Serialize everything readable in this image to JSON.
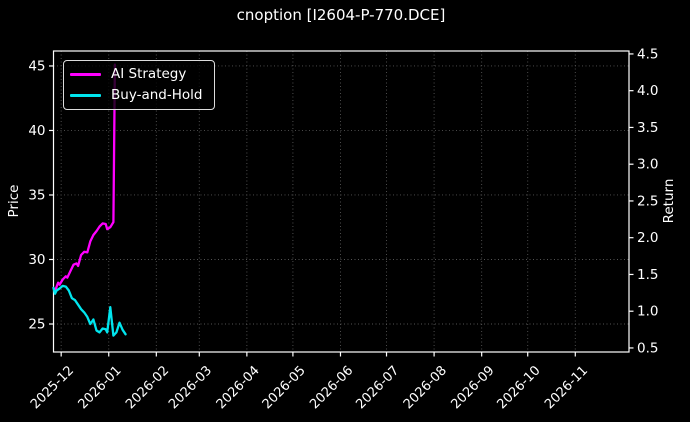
{
  "chart_data": {
    "type": "line",
    "title": "cnoption [I2604-P-770.DCE]",
    "ylabel_left": "Price",
    "ylabel_right": "Return",
    "x_domain": [
      "2025-11-26",
      "2026-12-06"
    ],
    "ylim_left": [
      22.83,
      46.16
    ],
    "ylim_right": [
      0.445,
      4.54
    ],
    "x_ticks": [
      {
        "label": "2025-12",
        "date": "2025-12-01"
      },
      {
        "label": "2026-01",
        "date": "2026-01-01"
      },
      {
        "label": "2026-02",
        "date": "2026-02-01"
      },
      {
        "label": "2026-03",
        "date": "2026-03-01"
      },
      {
        "label": "2026-04",
        "date": "2026-04-01"
      },
      {
        "label": "2026-05",
        "date": "2026-05-01"
      },
      {
        "label": "2026-06",
        "date": "2026-06-01"
      },
      {
        "label": "2026-07",
        "date": "2026-07-01"
      },
      {
        "label": "2026-08",
        "date": "2026-08-01"
      },
      {
        "label": "2026-09",
        "date": "2026-09-01"
      },
      {
        "label": "2026-10",
        "date": "2026-10-01"
      },
      {
        "label": "2026-11",
        "date": "2026-11-01"
      }
    ],
    "y_ticks_left": [
      25,
      30,
      35,
      40,
      45
    ],
    "y_ticks_right": [
      0.5,
      1.0,
      1.5,
      2.0,
      2.5,
      3.0,
      3.5,
      4.0,
      4.5
    ],
    "grid": {
      "visible": true,
      "style": "dotted",
      "color": "#555555"
    },
    "legend": {
      "position": "upper-left"
    },
    "colors": {
      "background": "#000000",
      "text": "#ffffff",
      "spine": "#ffffff",
      "ai_strategy": "#ff00ff",
      "buy_and_hold": "#00e5ee"
    },
    "series": [
      {
        "name": "AI Strategy",
        "color": "#ff00ff",
        "axis": "left",
        "points": [
          [
            "2025-11-26",
            27.8
          ],
          [
            "2025-11-27",
            27.55
          ],
          [
            "2025-11-29",
            28.2
          ],
          [
            "2025-11-30",
            28.05
          ],
          [
            "2025-12-02",
            28.45
          ],
          [
            "2025-12-04",
            28.7
          ],
          [
            "2025-12-05",
            28.6
          ],
          [
            "2025-12-07",
            29.1
          ],
          [
            "2025-12-09",
            29.6
          ],
          [
            "2025-12-11",
            29.7
          ],
          [
            "2025-12-12",
            29.5
          ],
          [
            "2025-12-14",
            30.35
          ],
          [
            "2025-12-16",
            30.6
          ],
          [
            "2025-12-18",
            30.55
          ],
          [
            "2025-12-20",
            31.4
          ],
          [
            "2025-12-22",
            31.9
          ],
          [
            "2025-12-24",
            32.2
          ],
          [
            "2025-12-26",
            32.55
          ],
          [
            "2025-12-28",
            32.8
          ],
          [
            "2025-12-30",
            32.75
          ],
          [
            "2025-12-31",
            32.35
          ],
          [
            "2026-01-02",
            32.5
          ],
          [
            "2026-01-04",
            32.9
          ],
          [
            "2026-01-05",
            45.1
          ]
        ]
      },
      {
        "name": "Buy-and-Hold",
        "color": "#00e5ee",
        "axis": "left",
        "points": [
          [
            "2025-11-26",
            27.8
          ],
          [
            "2025-11-27",
            27.35
          ],
          [
            "2025-11-28",
            27.6
          ],
          [
            "2025-11-30",
            27.75
          ],
          [
            "2025-12-02",
            27.95
          ],
          [
            "2025-12-04",
            27.9
          ],
          [
            "2025-12-06",
            27.6
          ],
          [
            "2025-12-08",
            27.0
          ],
          [
            "2025-12-10",
            26.85
          ],
          [
            "2025-12-12",
            26.5
          ],
          [
            "2025-12-14",
            26.15
          ],
          [
            "2025-12-16",
            25.9
          ],
          [
            "2025-12-18",
            25.55
          ],
          [
            "2025-12-20",
            25.0
          ],
          [
            "2025-12-22",
            25.35
          ],
          [
            "2025-12-24",
            24.5
          ],
          [
            "2025-12-26",
            24.35
          ],
          [
            "2025-12-28",
            24.65
          ],
          [
            "2025-12-30",
            24.6
          ],
          [
            "2025-12-31",
            24.35
          ],
          [
            "2026-01-02",
            26.3
          ],
          [
            "2026-01-04",
            24.1
          ],
          [
            "2026-01-06",
            24.35
          ],
          [
            "2026-01-08",
            25.1
          ],
          [
            "2026-01-10",
            24.55
          ],
          [
            "2026-01-12",
            24.2
          ]
        ]
      }
    ]
  }
}
